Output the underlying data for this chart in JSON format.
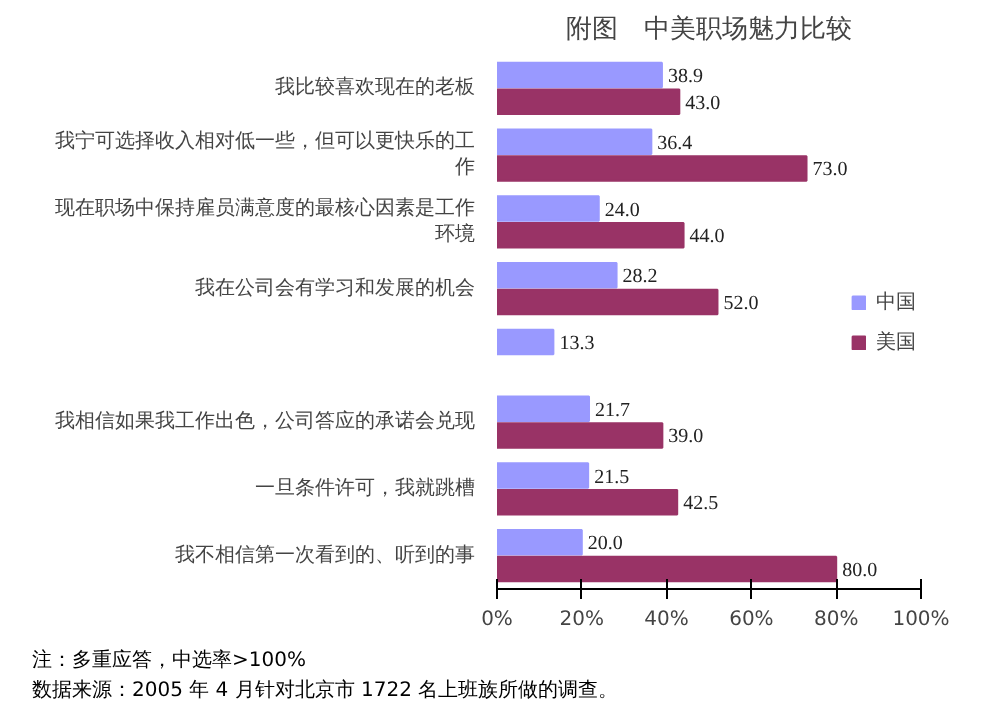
{
  "chart_data": {
    "type": "bar",
    "orientation": "horizontal",
    "title": "附图　中美职场魅力比较",
    "categories": [
      "我比较喜欢现在的老板",
      "我宁可选择收入相对低一些，但可以更快乐的工作",
      "现在职场中保持雇员满意度的最核心因素是工作环境",
      "我在公司会有学习和发展的机会",
      null,
      "我相信如果我工作出色，公司答应的承诺会兑现",
      "一旦条件许可，我就跳槽",
      "我不相信第一次看到的、听到的事"
    ],
    "series": [
      {
        "name": "中国",
        "color": "#9999ff",
        "values": [
          38.9,
          36.4,
          24.0,
          28.2,
          13.3,
          21.7,
          21.5,
          20.0
        ],
        "value_labels": [
          "38.9",
          "36.4",
          "24.0",
          "28.2",
          "13.3",
          "21.7",
          "21.5",
          "20.0"
        ]
      },
      {
        "name": "美国",
        "color": "#993366",
        "values": [
          43.0,
          73.0,
          44.0,
          52.0,
          null,
          39.0,
          42.5,
          80.0
        ],
        "value_labels": [
          "43.0",
          "73.0",
          "44.0",
          "52.0",
          null,
          "39.0",
          "42.5",
          "80.0"
        ]
      }
    ],
    "xlim": [
      0,
      100
    ],
    "xticks": [
      {
        "value": 0,
        "label": "0%"
      },
      {
        "value": 20,
        "label": "20%"
      },
      {
        "value": 40,
        "label": "40%"
      },
      {
        "value": 60,
        "label": "60%"
      },
      {
        "value": 80,
        "label": "80%"
      },
      {
        "value": 100,
        "label": "100%"
      }
    ],
    "grid": false,
    "legend": "right",
    "annotations": [
      "注：多重应答，中选率>100%",
      "数据来源：2005 年 4 月针对北京市 1722 名上班族所做的调查。"
    ]
  }
}
